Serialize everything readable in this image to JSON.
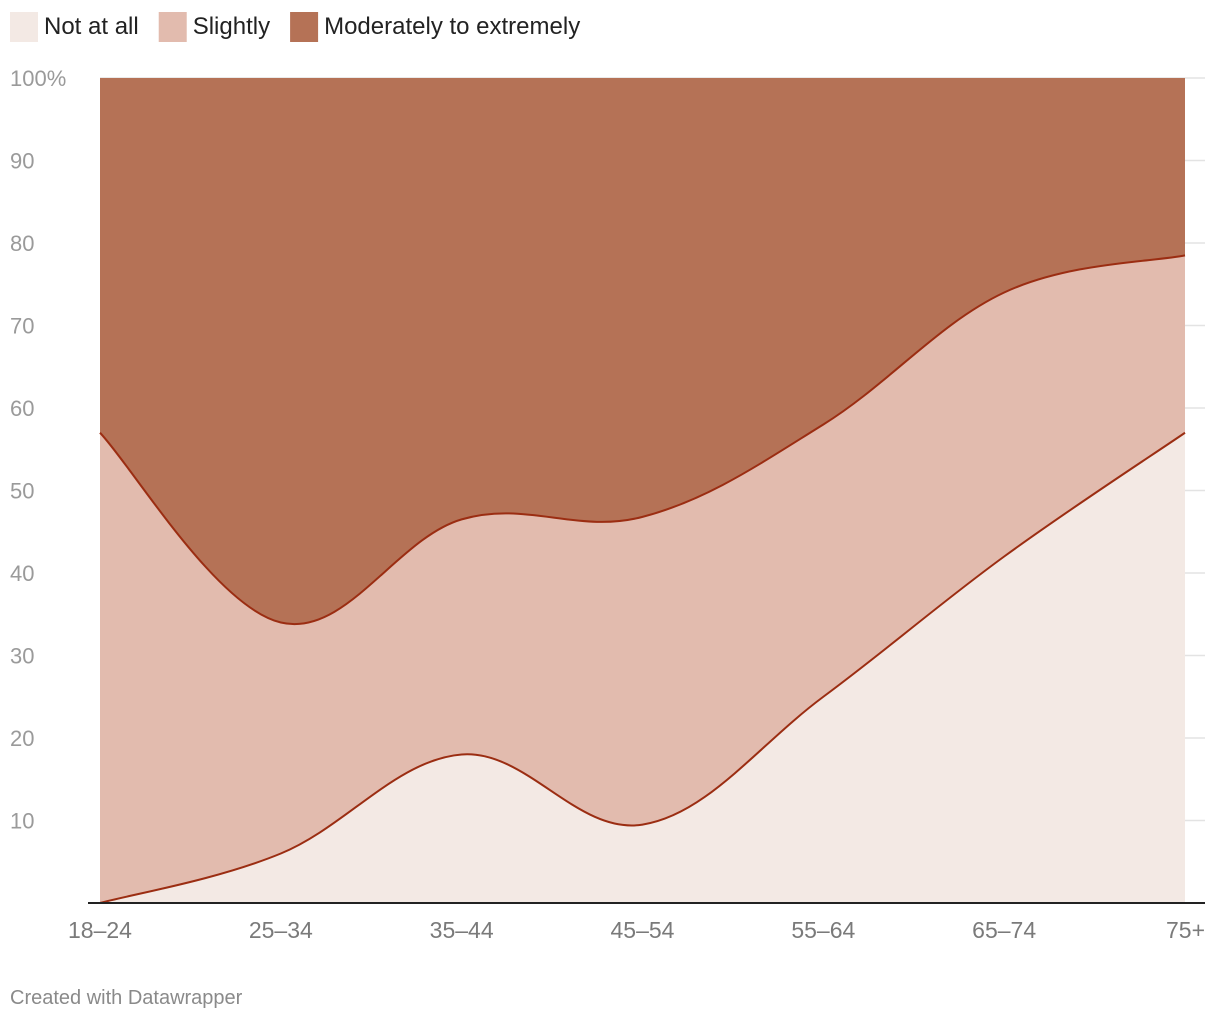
{
  "chart_data": {
    "type": "area",
    "stacked": true,
    "categories": [
      "18–24",
      "25–34",
      "35–44",
      "45–54",
      "55–64",
      "65–74",
      "75+"
    ],
    "series": [
      {
        "name": "Not at all",
        "color": "#f3e9e4",
        "values": [
          0,
          6,
          18,
          9.5,
          25,
          42,
          57
        ]
      },
      {
        "name": "Slightly",
        "color": "#e2bbae",
        "values": [
          57,
          28,
          28.5,
          37.3,
          33,
          32,
          21.5
        ]
      },
      {
        "name": "Moderately to extremely",
        "color": "#b57256",
        "values": [
          43,
          66,
          53.5,
          53.2,
          42,
          26,
          21.5
        ]
      }
    ],
    "boundary_line_color": "#9b2d12",
    "y_ticks": [
      "10",
      "20",
      "30",
      "40",
      "50",
      "60",
      "70",
      "80",
      "90",
      "100%"
    ],
    "y_tick_values": [
      10,
      20,
      30,
      40,
      50,
      60,
      70,
      80,
      90,
      100
    ],
    "ylim": [
      0,
      100
    ],
    "grid": true,
    "legend_position": "top-left"
  },
  "credit": "Created with Datawrapper"
}
